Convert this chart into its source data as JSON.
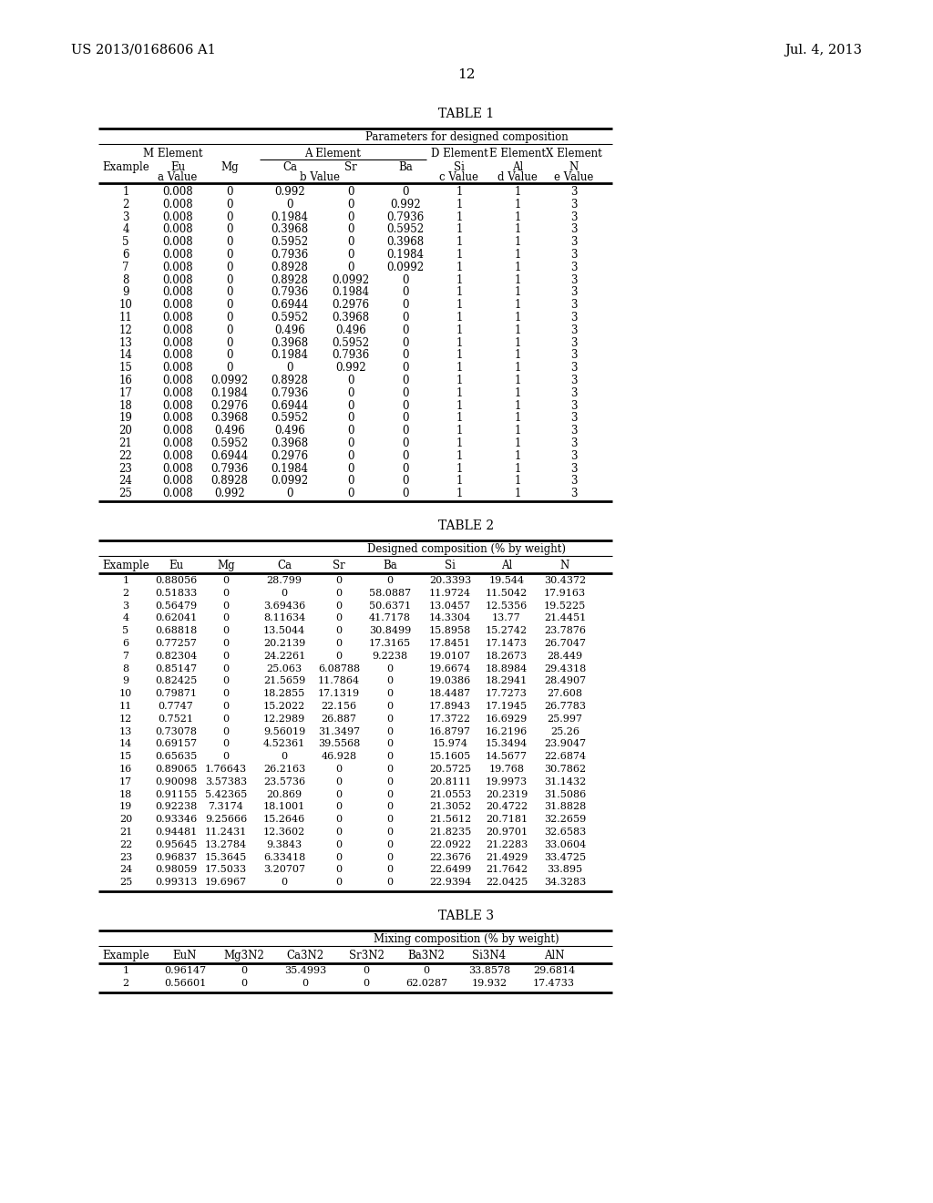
{
  "header_left": "US 2013/0168606 A1",
  "header_right": "Jul. 4, 2013",
  "page_number": "12",
  "background_color": "#ffffff",
  "table1_title": "TABLE 1",
  "table1_subtitle": "Parameters for designed composition",
  "table1_data": [
    [
      1,
      "0.008",
      "0",
      "0.992",
      "0",
      "0",
      "1",
      "1",
      "3"
    ],
    [
      2,
      "0.008",
      "0",
      "0",
      "0",
      "0.992",
      "1",
      "1",
      "3"
    ],
    [
      3,
      "0.008",
      "0",
      "0.1984",
      "0",
      "0.7936",
      "1",
      "1",
      "3"
    ],
    [
      4,
      "0.008",
      "0",
      "0.3968",
      "0",
      "0.5952",
      "1",
      "1",
      "3"
    ],
    [
      5,
      "0.008",
      "0",
      "0.5952",
      "0",
      "0.3968",
      "1",
      "1",
      "3"
    ],
    [
      6,
      "0.008",
      "0",
      "0.7936",
      "0",
      "0.1984",
      "1",
      "1",
      "3"
    ],
    [
      7,
      "0.008",
      "0",
      "0.8928",
      "0",
      "0.0992",
      "1",
      "1",
      "3"
    ],
    [
      8,
      "0.008",
      "0",
      "0.8928",
      "0.0992",
      "0",
      "1",
      "1",
      "3"
    ],
    [
      9,
      "0.008",
      "0",
      "0.7936",
      "0.1984",
      "0",
      "1",
      "1",
      "3"
    ],
    [
      10,
      "0.008",
      "0",
      "0.6944",
      "0.2976",
      "0",
      "1",
      "1",
      "3"
    ],
    [
      11,
      "0.008",
      "0",
      "0.5952",
      "0.3968",
      "0",
      "1",
      "1",
      "3"
    ],
    [
      12,
      "0.008",
      "0",
      "0.496",
      "0.496",
      "0",
      "1",
      "1",
      "3"
    ],
    [
      13,
      "0.008",
      "0",
      "0.3968",
      "0.5952",
      "0",
      "1",
      "1",
      "3"
    ],
    [
      14,
      "0.008",
      "0",
      "0.1984",
      "0.7936",
      "0",
      "1",
      "1",
      "3"
    ],
    [
      15,
      "0.008",
      "0",
      "0",
      "0.992",
      "0",
      "1",
      "1",
      "3"
    ],
    [
      16,
      "0.008",
      "0.0992",
      "0.8928",
      "0",
      "0",
      "1",
      "1",
      "3"
    ],
    [
      17,
      "0.008",
      "0.1984",
      "0.7936",
      "0",
      "0",
      "1",
      "1",
      "3"
    ],
    [
      18,
      "0.008",
      "0.2976",
      "0.6944",
      "0",
      "0",
      "1",
      "1",
      "3"
    ],
    [
      19,
      "0.008",
      "0.3968",
      "0.5952",
      "0",
      "0",
      "1",
      "1",
      "3"
    ],
    [
      20,
      "0.008",
      "0.496",
      "0.496",
      "0",
      "0",
      "1",
      "1",
      "3"
    ],
    [
      21,
      "0.008",
      "0.5952",
      "0.3968",
      "0",
      "0",
      "1",
      "1",
      "3"
    ],
    [
      22,
      "0.008",
      "0.6944",
      "0.2976",
      "0",
      "0",
      "1",
      "1",
      "3"
    ],
    [
      23,
      "0.008",
      "0.7936",
      "0.1984",
      "0",
      "0",
      "1",
      "1",
      "3"
    ],
    [
      24,
      "0.008",
      "0.8928",
      "0.0992",
      "0",
      "0",
      "1",
      "1",
      "3"
    ],
    [
      25,
      "0.008",
      "0.992",
      "0",
      "0",
      "0",
      "1",
      "1",
      "3"
    ]
  ],
  "table2_title": "TABLE 2",
  "table2_subtitle": "Designed composition (% by weight)",
  "table2_headers": [
    "Example",
    "Eu",
    "Mg",
    "Ca",
    "Sr",
    "Ba",
    "Si",
    "Al",
    "N"
  ],
  "table2_data": [
    [
      "1",
      "0.88056",
      "0",
      "28.799",
      "0",
      "0",
      "20.3393",
      "19.544",
      "30.4372"
    ],
    [
      "2",
      "0.51833",
      "0",
      "0",
      "0",
      "58.0887",
      "11.9724",
      "11.5042",
      "17.9163"
    ],
    [
      "3",
      "0.56479",
      "0",
      "3.69436",
      "0",
      "50.6371",
      "13.0457",
      "12.5356",
      "19.5225"
    ],
    [
      "4",
      "0.62041",
      "0",
      "8.11634",
      "0",
      "41.7178",
      "14.3304",
      "13.77",
      "21.4451"
    ],
    [
      "5",
      "0.68818",
      "0",
      "13.5044",
      "0",
      "30.8499",
      "15.8958",
      "15.2742",
      "23.7876"
    ],
    [
      "6",
      "0.77257",
      "0",
      "20.2139",
      "0",
      "17.3165",
      "17.8451",
      "17.1473",
      "26.7047"
    ],
    [
      "7",
      "0.82304",
      "0",
      "24.2261",
      "0",
      "9.2238",
      "19.0107",
      "18.2673",
      "28.449"
    ],
    [
      "8",
      "0.85147",
      "0",
      "25.063",
      "6.08788",
      "0",
      "19.6674",
      "18.8984",
      "29.4318"
    ],
    [
      "9",
      "0.82425",
      "0",
      "21.5659",
      "11.7864",
      "0",
      "19.0386",
      "18.2941",
      "28.4907"
    ],
    [
      "10",
      "0.79871",
      "0",
      "18.2855",
      "17.1319",
      "0",
      "18.4487",
      "17.7273",
      "27.608"
    ],
    [
      "11",
      "0.7747",
      "0",
      "15.2022",
      "22.156",
      "0",
      "17.8943",
      "17.1945",
      "26.7783"
    ],
    [
      "12",
      "0.7521",
      "0",
      "12.2989",
      "26.887",
      "0",
      "17.3722",
      "16.6929",
      "25.997"
    ],
    [
      "13",
      "0.73078",
      "0",
      "9.56019",
      "31.3497",
      "0",
      "16.8797",
      "16.2196",
      "25.26"
    ],
    [
      "14",
      "0.69157",
      "0",
      "4.52361",
      "39.5568",
      "0",
      "15.974",
      "15.3494",
      "23.9047"
    ],
    [
      "15",
      "0.65635",
      "0",
      "0",
      "46.928",
      "0",
      "15.1605",
      "14.5677",
      "22.6874"
    ],
    [
      "16",
      "0.89065",
      "1.76643",
      "26.2163",
      "0",
      "0",
      "20.5725",
      "19.768",
      "30.7862"
    ],
    [
      "17",
      "0.90098",
      "3.57383",
      "23.5736",
      "0",
      "0",
      "20.8111",
      "19.9973",
      "31.1432"
    ],
    [
      "18",
      "0.91155",
      "5.42365",
      "20.869",
      "0",
      "0",
      "21.0553",
      "20.2319",
      "31.5086"
    ],
    [
      "19",
      "0.92238",
      "7.3174",
      "18.1001",
      "0",
      "0",
      "21.3052",
      "20.4722",
      "31.8828"
    ],
    [
      "20",
      "0.93346",
      "9.25666",
      "15.2646",
      "0",
      "0",
      "21.5612",
      "20.7181",
      "32.2659"
    ],
    [
      "21",
      "0.94481",
      "11.2431",
      "12.3602",
      "0",
      "0",
      "21.8235",
      "20.9701",
      "32.6583"
    ],
    [
      "22",
      "0.95645",
      "13.2784",
      "9.3843",
      "0",
      "0",
      "22.0922",
      "21.2283",
      "33.0604"
    ],
    [
      "23",
      "0.96837",
      "15.3645",
      "6.33418",
      "0",
      "0",
      "22.3676",
      "21.4929",
      "33.4725"
    ],
    [
      "24",
      "0.98059",
      "17.5033",
      "3.20707",
      "0",
      "0",
      "22.6499",
      "21.7642",
      "33.895"
    ],
    [
      "25",
      "0.99313",
      "19.6967",
      "0",
      "0",
      "0",
      "22.9394",
      "22.0425",
      "34.3283"
    ]
  ],
  "table3_title": "TABLE 3",
  "table3_subtitle": "Mixing composition (% by weight)",
  "table3_headers": [
    "Example",
    "EuN",
    "Mg3N2",
    "Ca3N2",
    "Sr3N2",
    "Ba3N2",
    "Si3N4",
    "AlN"
  ],
  "table3_data": [
    [
      "1",
      "0.96147",
      "0",
      "35.4993",
      "0",
      "0",
      "33.8578",
      "29.6814"
    ],
    [
      "2",
      "0.56601",
      "0",
      "0",
      "0",
      "62.0287",
      "19.932",
      "17.4733"
    ]
  ]
}
